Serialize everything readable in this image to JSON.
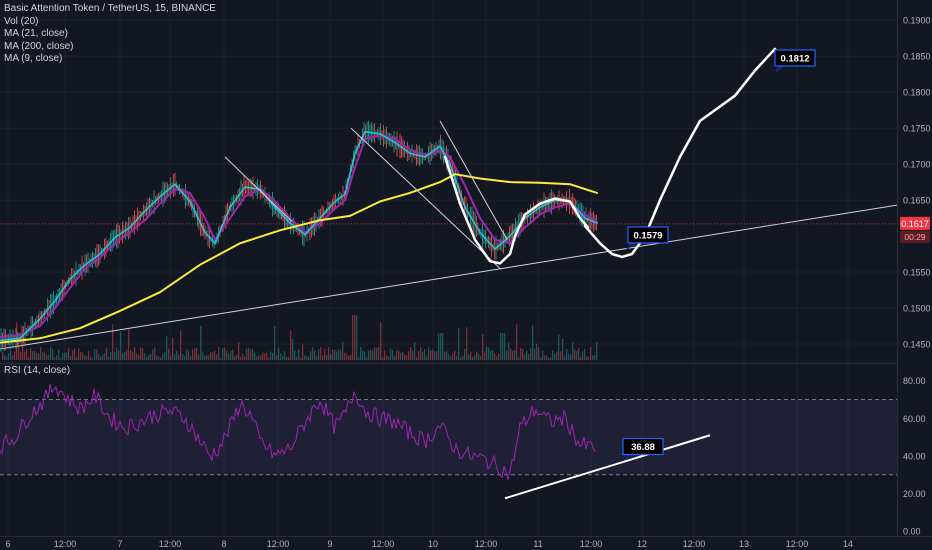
{
  "chart_data": {
    "type": "line",
    "title": "Basic Attention Token / TetherUS, 15, BINANCE",
    "indicators": [
      "Vol (20)",
      "MA (21, close)",
      "MA (200, close)",
      "MA (9, close)"
    ],
    "price_axis": {
      "ticks": [
        "0.1900",
        "0.1850",
        "0.1800",
        "0.1750",
        "0.1700",
        "0.1650",
        "0.1550",
        "0.1500",
        "0.1450"
      ],
      "tick_values": [
        0.19,
        0.185,
        0.18,
        0.175,
        0.17,
        0.165,
        0.155,
        0.15,
        0.145
      ],
      "ylim": [
        0.1425,
        0.1928
      ]
    },
    "time_axis": {
      "labels": [
        "6",
        "12:00",
        "7",
        "12:00",
        "8",
        "12:00",
        "9",
        "12:00",
        "10",
        "12:00",
        "11",
        "12:00",
        "12",
        "12:00",
        "13",
        "12:00",
        "14"
      ],
      "xlim": [
        0,
        880
      ]
    },
    "current_price": {
      "label": "0.1617",
      "value": 0.1617,
      "color": "#f23645"
    },
    "countdown": {
      "label": "00:29",
      "color": "#f23645"
    },
    "series": [
      {
        "name": "MA (200, close)",
        "color": "#ffeb3b",
        "x": [
          0,
          40,
          80,
          120,
          160,
          200,
          240,
          280,
          320,
          350,
          380,
          410,
          440,
          455,
          480,
          510,
          540,
          570,
          597
        ],
        "y": [
          0.1452,
          0.1458,
          0.1472,
          0.1496,
          0.1522,
          0.156,
          0.159,
          0.1608,
          0.1622,
          0.1628,
          0.1648,
          0.166,
          0.1675,
          0.1686,
          0.168,
          0.1675,
          0.1674,
          0.1672,
          0.166
        ]
      },
      {
        "name": "MA (21, close)",
        "color": "#9c27b0",
        "x": [
          0,
          20,
          40,
          55,
          70,
          85,
          100,
          115,
          130,
          145,
          160,
          175,
          190,
          205,
          215,
          230,
          245,
          260,
          275,
          290,
          305,
          320,
          335,
          345,
          355,
          365,
          380,
          395,
          410,
          425,
          440,
          450,
          465,
          480,
          495,
          510,
          525,
          540,
          555,
          570,
          585,
          597
        ],
        "y": [
          0.146,
          0.1462,
          0.1475,
          0.15,
          0.1528,
          0.1555,
          0.157,
          0.159,
          0.1605,
          0.1622,
          0.1645,
          0.1665,
          0.166,
          0.1625,
          0.1595,
          0.1625,
          0.1655,
          0.1665,
          0.1648,
          0.1625,
          0.1605,
          0.1618,
          0.1638,
          0.165,
          0.1695,
          0.1735,
          0.174,
          0.1735,
          0.172,
          0.1712,
          0.1718,
          0.171,
          0.167,
          0.1625,
          0.1595,
          0.159,
          0.1612,
          0.163,
          0.164,
          0.1645,
          0.163,
          0.162
        ]
      },
      {
        "name": "MA (9, close)",
        "color": "#26c6da",
        "x": [
          0,
          20,
          40,
          55,
          70,
          85,
          100,
          115,
          130,
          145,
          160,
          175,
          190,
          205,
          215,
          230,
          245,
          260,
          275,
          290,
          305,
          320,
          335,
          345,
          355,
          365,
          380,
          395,
          410,
          425,
          440,
          450,
          465,
          480,
          495,
          510,
          525,
          540,
          555,
          570,
          585,
          597
        ],
        "y": [
          0.1455,
          0.1458,
          0.1485,
          0.151,
          0.154,
          0.156,
          0.1575,
          0.1598,
          0.1612,
          0.1635,
          0.1655,
          0.1672,
          0.1648,
          0.1605,
          0.159,
          0.164,
          0.1668,
          0.1665,
          0.164,
          0.1618,
          0.1602,
          0.1625,
          0.1648,
          0.1658,
          0.1715,
          0.1745,
          0.1742,
          0.173,
          0.1715,
          0.171,
          0.1725,
          0.17,
          0.164,
          0.1605,
          0.1582,
          0.16,
          0.1625,
          0.164,
          0.165,
          0.1648,
          0.1625,
          0.1618
        ]
      }
    ],
    "drawings": {
      "trendline": {
        "x": [
          0,
          897
        ],
        "y": [
          0.1443,
          0.1643
        ],
        "color": "#d1d4dc"
      },
      "projection": {
        "x": [
          585,
          600,
          612,
          622,
          632,
          645,
          660,
          680,
          700,
          715,
          735,
          755,
          775
        ],
        "y": [
          0.1614,
          0.159,
          0.1575,
          0.1571,
          0.1575,
          0.16,
          0.165,
          0.171,
          0.176,
          0.1775,
          0.1795,
          0.183,
          0.186
        ],
        "color": "#ffffff"
      },
      "cup_curve": {
        "x": [
          445,
          460,
          475,
          490,
          500,
          510,
          515,
          525,
          540,
          555,
          570,
          580,
          588
        ],
        "y": [
          0.171,
          0.1645,
          0.1595,
          0.1565,
          0.1562,
          0.1575,
          0.16,
          0.163,
          0.1645,
          0.1652,
          0.1648,
          0.1625,
          0.1612
        ],
        "color": "#ffffff"
      },
      "down_lines": [
        {
          "x": [
            225,
            292
          ],
          "y": [
            0.171,
            0.162
          ],
          "color": "#d1d4dc"
        },
        {
          "x": [
            351,
            500
          ],
          "y": [
            0.175,
            0.1555
          ],
          "color": "#d1d4dc"
        },
        {
          "x": [
            440,
            507
          ],
          "y": [
            0.176,
            0.1595
          ],
          "color": "#d1d4dc"
        }
      ],
      "callouts": [
        {
          "label": "0.1812",
          "x": 795,
          "y": 0.18475,
          "anchor_x": 775,
          "anchor_y": 0.1826
        },
        {
          "label": "0.1579",
          "x": 648,
          "y": 0.16015,
          "anchor_x": 625,
          "anchor_y": 0.158
        }
      ]
    },
    "rsi": {
      "title": "RSI (14, close)",
      "ticks": [
        "80.00",
        "60.00",
        "40.00",
        "20.00",
        "0.00"
      ],
      "tick_values": [
        80,
        60,
        40,
        20,
        0
      ],
      "ylim": [
        -2,
        83
      ],
      "band": [
        30,
        70
      ],
      "color": "#9c27b0",
      "x": [
        0,
        15,
        30,
        45,
        55,
        65,
        80,
        95,
        110,
        125,
        140,
        155,
        170,
        185,
        200,
        210,
        220,
        230,
        240,
        250,
        260,
        275,
        290,
        305,
        320,
        335,
        345,
        355,
        365,
        380,
        395,
        410,
        425,
        440,
        455,
        470,
        485,
        500,
        510,
        520,
        535,
        550,
        565,
        580,
        597
      ],
      "values": [
        45,
        50,
        62,
        70,
        78,
        72,
        65,
        72,
        60,
        55,
        58,
        62,
        64,
        60,
        48,
        40,
        45,
        55,
        68,
        62,
        48,
        40,
        44,
        58,
        70,
        55,
        62,
        75,
        64,
        60,
        58,
        52,
        48,
        56,
        44,
        40,
        38,
        34,
        30,
        55,
        65,
        58,
        60,
        46,
        44
      ],
      "trendline": {
        "x": [
          505,
          710
        ],
        "y": [
          17.5,
          51
        ],
        "color": "#ffffff"
      },
      "callout": {
        "label": "36.88",
        "x": 643,
        "y": 45,
        "anchor_x": 622,
        "anchor_y": 38
      }
    },
    "volume": {
      "color_up": "#26a69a",
      "color_down": "#ef5350",
      "scale_max": 1
    }
  }
}
